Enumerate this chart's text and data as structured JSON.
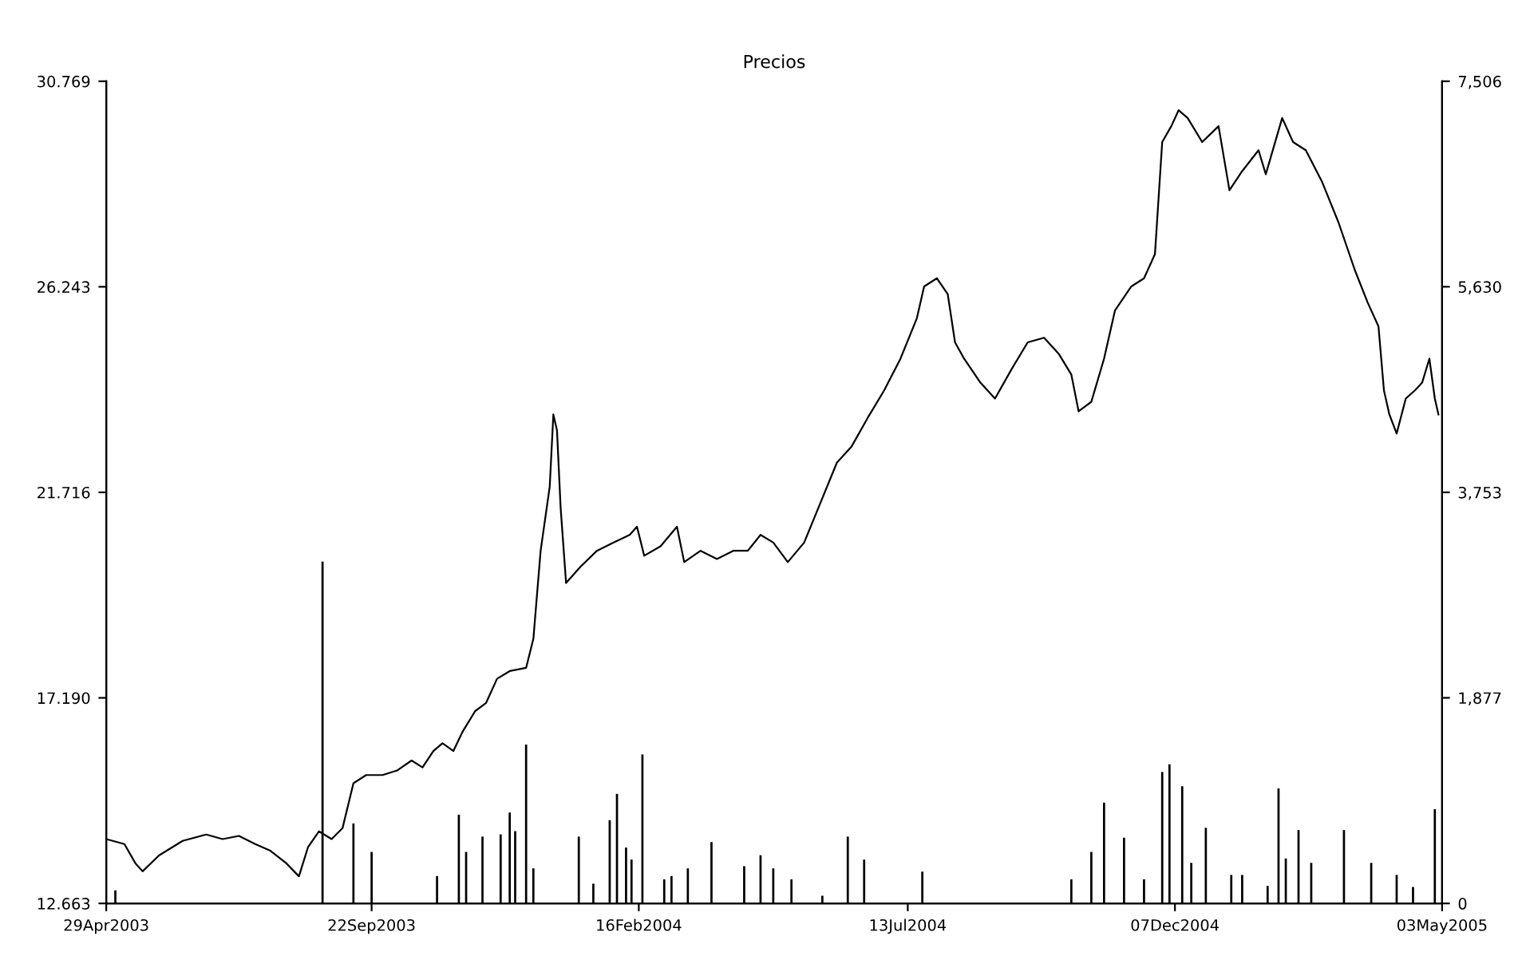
{
  "chart_data": {
    "type": "line",
    "title": "Precios",
    "xlim": [
      "2003-04-29",
      "2005-05-03"
    ],
    "xticks": [
      {
        "value": "2003-04-29",
        "label": "29Apr2003"
      },
      {
        "value": "2003-09-22",
        "label": "22Sep2003"
      },
      {
        "value": "2004-02-16",
        "label": "16Feb2004"
      },
      {
        "value": "2004-07-13",
        "label": "13Jul2004"
      },
      {
        "value": "2004-12-07",
        "label": "07Dec2004"
      },
      {
        "value": "2005-05-03",
        "label": "03May2005"
      }
    ],
    "ylim": [
      12.663,
      30.769
    ],
    "yticks": [
      {
        "value": 12.663,
        "label": "12.663"
      },
      {
        "value": 17.19,
        "label": "17.190"
      },
      {
        "value": 21.716,
        "label": "21.716"
      },
      {
        "value": 26.243,
        "label": "26.243"
      },
      {
        "value": 30.769,
        "label": "30.769"
      }
    ],
    "y2lim": [
      0,
      7506
    ],
    "y2ticks": [
      0,
      {
        "value": 1877,
        "label": "1,877"
      },
      {
        "value": 3753,
        "label": "3,753"
      },
      {
        "value": 5630,
        "label": "5,630"
      },
      {
        "value": 7506,
        "label": "7,506"
      }
    ],
    "grid": false,
    "legend": false,
    "series": [
      {
        "axis": "y",
        "color": "#000000",
        "x": [
          "2003-04-29",
          "2003-05-09",
          "2003-05-15",
          "2003-05-19",
          "2003-05-28",
          "2003-06-10",
          "2003-06-23",
          "2003-07-02",
          "2003-07-11",
          "2003-07-20",
          "2003-07-28",
          "2003-08-06",
          "2003-08-13",
          "2003-08-18",
          "2003-08-24",
          "2003-08-31",
          "2003-09-06",
          "2003-09-12",
          "2003-09-19",
          "2003-09-28",
          "2003-10-06",
          "2003-10-14",
          "2003-10-20",
          "2003-10-26",
          "2003-10-31",
          "2003-11-06",
          "2003-11-11",
          "2003-11-18",
          "2003-11-24",
          "2003-11-30",
          "2003-12-07",
          "2003-12-16",
          "2003-12-20",
          "2003-12-24",
          "2003-12-29",
          "2003-12-31",
          "2004-01-02",
          "2004-01-04",
          "2004-01-07",
          "2004-01-11",
          "2004-01-15",
          "2004-01-24",
          "2004-02-02",
          "2004-02-11",
          "2004-02-15",
          "2004-02-19",
          "2004-02-28",
          "2004-03-08",
          "2004-03-12",
          "2004-03-21",
          "2004-03-30",
          "2004-04-08",
          "2004-04-16",
          "2004-04-23",
          "2004-04-30",
          "2004-05-08",
          "2004-05-17",
          "2004-05-26",
          "2004-06-04",
          "2004-06-12",
          "2004-06-21",
          "2004-06-30",
          "2004-07-09",
          "2004-07-18",
          "2004-07-22",
          "2004-07-29",
          "2004-08-04",
          "2004-08-08",
          "2004-08-13",
          "2004-08-22",
          "2004-08-30",
          "2004-09-08",
          "2004-09-17",
          "2004-09-26",
          "2004-10-04",
          "2004-10-11",
          "2004-10-15",
          "2004-10-22",
          "2004-10-29",
          "2004-11-04",
          "2004-11-13",
          "2004-11-20",
          "2004-11-26",
          "2004-11-30",
          "2004-12-05",
          "2004-12-09",
          "2004-12-14",
          "2004-12-22",
          "2004-12-31",
          "2005-01-06",
          "2005-01-13",
          "2005-01-22",
          "2005-01-26",
          "2005-02-04",
          "2005-02-10",
          "2005-02-17",
          "2005-02-26",
          "2005-03-07",
          "2005-03-16",
          "2005-03-23",
          "2005-03-29",
          "2005-04-01",
          "2005-04-04",
          "2005-04-08",
          "2005-04-13",
          "2005-04-18",
          "2005-04-22",
          "2005-04-26",
          "2005-04-29",
          "2005-05-01"
        ],
        "values": [
          14.08,
          13.97,
          13.55,
          13.37,
          13.72,
          14.04,
          14.18,
          14.08,
          14.15,
          13.97,
          13.83,
          13.55,
          13.26,
          13.9,
          14.25,
          14.08,
          14.32,
          15.31,
          15.49,
          15.49,
          15.59,
          15.81,
          15.66,
          16.02,
          16.19,
          16.02,
          16.44,
          16.9,
          17.08,
          17.61,
          17.78,
          17.85,
          18.49,
          20.43,
          21.84,
          23.43,
          23.08,
          21.38,
          19.72,
          19.9,
          20.08,
          20.43,
          20.61,
          20.78,
          20.96,
          20.32,
          20.53,
          20.96,
          20.18,
          20.43,
          20.25,
          20.43,
          20.43,
          20.78,
          20.61,
          20.18,
          20.61,
          21.49,
          22.37,
          22.72,
          23.36,
          23.96,
          24.66,
          25.55,
          26.25,
          26.43,
          26.08,
          25.02,
          24.66,
          24.13,
          23.78,
          24.42,
          25.02,
          25.12,
          24.77,
          24.31,
          23.5,
          23.71,
          24.66,
          25.72,
          26.25,
          26.43,
          26.96,
          29.43,
          29.78,
          30.13,
          29.96,
          29.43,
          29.78,
          28.37,
          28.79,
          29.25,
          28.72,
          29.96,
          29.43,
          29.25,
          28.55,
          27.66,
          26.61,
          25.9,
          25.37,
          23.96,
          23.43,
          23.01,
          23.78,
          23.96,
          24.13,
          24.66,
          23.78,
          23.43
        ]
      },
      {
        "type": "bar",
        "axis": "y2",
        "color": "#000000",
        "x": [
          "2003-05-04",
          "2003-08-26",
          "2003-09-12",
          "2003-09-22",
          "2003-10-28",
          "2003-11-09",
          "2003-11-13",
          "2003-11-22",
          "2003-12-02",
          "2003-12-07",
          "2003-12-10",
          "2003-12-16",
          "2003-12-20",
          "2004-01-14",
          "2004-01-22",
          "2004-01-31",
          "2004-02-04",
          "2004-02-09",
          "2004-02-12",
          "2004-02-18",
          "2004-03-01",
          "2004-03-05",
          "2004-03-14",
          "2004-03-27",
          "2004-04-14",
          "2004-04-23",
          "2004-04-30",
          "2004-05-10",
          "2004-05-27",
          "2004-06-10",
          "2004-06-19",
          "2004-07-21",
          "2004-10-11",
          "2004-10-22",
          "2004-10-29",
          "2004-11-09",
          "2004-11-20",
          "2004-11-30",
          "2004-12-04",
          "2004-12-11",
          "2004-12-16",
          "2004-12-24",
          "2005-01-07",
          "2005-01-13",
          "2005-01-27",
          "2005-02-02",
          "2005-02-06",
          "2005-02-13",
          "2005-02-20",
          "2005-03-10",
          "2005-03-25",
          "2005-04-08",
          "2005-04-17",
          "2005-04-29"
        ],
        "values": [
          120,
          3120,
          730,
          470,
          250,
          810,
          470,
          610,
          630,
          830,
          660,
          1450,
          320,
          610,
          180,
          760,
          1000,
          510,
          400,
          1360,
          220,
          250,
          320,
          560,
          340,
          440,
          320,
          220,
          70,
          610,
          400,
          290,
          220,
          470,
          920,
          600,
          220,
          1200,
          1270,
          1070,
          370,
          690,
          260,
          260,
          160,
          1050,
          410,
          670,
          370,
          670,
          370,
          260,
          150,
          860
        ]
      }
    ]
  }
}
